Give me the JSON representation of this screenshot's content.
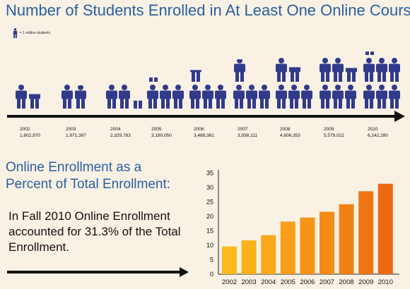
{
  "top_chart": {
    "title": "Number of Students Enrolled in At Least One Online Course:",
    "legend_label": "= 1 million students",
    "icon_name": "student-person-icon",
    "icon_color": "#323a8c"
  },
  "bottom": {
    "heading_line1": "Online Enrollment as a",
    "heading_line2": "Percent of Total Enrollment:",
    "note": "In Fall 2010 Online Enrollment accounted for 31.3% of the Total Enrollment."
  },
  "chart_data": [
    {
      "type": "pictograph",
      "title": "Number of Students Enrolled in At Least One Online Course:",
      "unit": "1 million students",
      "categories": [
        "2002",
        "2003",
        "2004",
        "2005",
        "2006",
        "2007",
        "2008",
        "2009",
        "2010"
      ],
      "values": [
        1602970,
        1971397,
        2329783,
        3180050,
        3488381,
        3938111,
        4606353,
        5579022,
        6142280
      ],
      "value_labels": [
        "1,602,970",
        "1,971,397",
        "2,329,783",
        "3,180,050",
        "3,488,381",
        "3,938,111",
        "4,606,353",
        "5,579,022",
        "6,142,280"
      ]
    },
    {
      "type": "bar",
      "categories": [
        "2002",
        "2003",
        "2004",
        "2005",
        "2006",
        "2007",
        "2008",
        "2009",
        "2010"
      ],
      "values": [
        9.6,
        11.7,
        13.5,
        18.2,
        19.6,
        21.6,
        24.2,
        28.7,
        31.3
      ],
      "ylim": [
        0,
        35
      ],
      "yticks": [
        0,
        5,
        10,
        15,
        20,
        25,
        30,
        35
      ],
      "grid": false,
      "colors": [
        "#fbba1a",
        "#fbb11a",
        "#f9a819",
        "#f89e18",
        "#f79417",
        "#f58a16",
        "#f38015",
        "#f07514",
        "#ed6a13"
      ]
    }
  ]
}
